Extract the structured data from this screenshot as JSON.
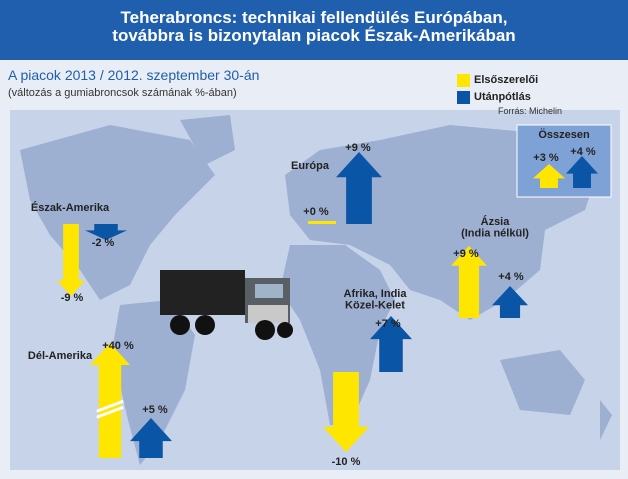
{
  "chart_data": {
    "type": "arrow",
    "title": "Teherabroncs: technikai fellendülés Európában,\ntovábbra is bizonytalan piacok Észak-Amerikában",
    "subtitle": "A piacok 2013 / 2012. szeptember 30-án",
    "note": "(változás a gumiabroncsok számának %-ában)",
    "source": "Forrás: Michelin",
    "categories": [
      "Észak-Amerika",
      "Európa",
      "Ázsia\n(India nélkül)",
      "Afrika, India\nKözel-Kelet",
      "Dél-Amerika",
      "Összesen"
    ],
    "series": [
      {
        "name": "Elsőszerelői",
        "color": "#ffe600",
        "values": [
          -9,
          0,
          9,
          -10,
          40,
          3
        ],
        "value_labels": [
          "-9 %",
          "+0 %",
          "+9 %",
          "-10 %",
          "+40 %",
          "+3 %"
        ]
      },
      {
        "name": "Utánpótlás",
        "color": "#0a55a6",
        "values": [
          -2,
          9,
          4,
          7,
          5,
          4
        ],
        "value_labels": [
          "-2 %",
          "+9 %",
          "+4 %",
          "+7 %",
          "+5 %",
          "+4 %"
        ]
      }
    ]
  }
}
